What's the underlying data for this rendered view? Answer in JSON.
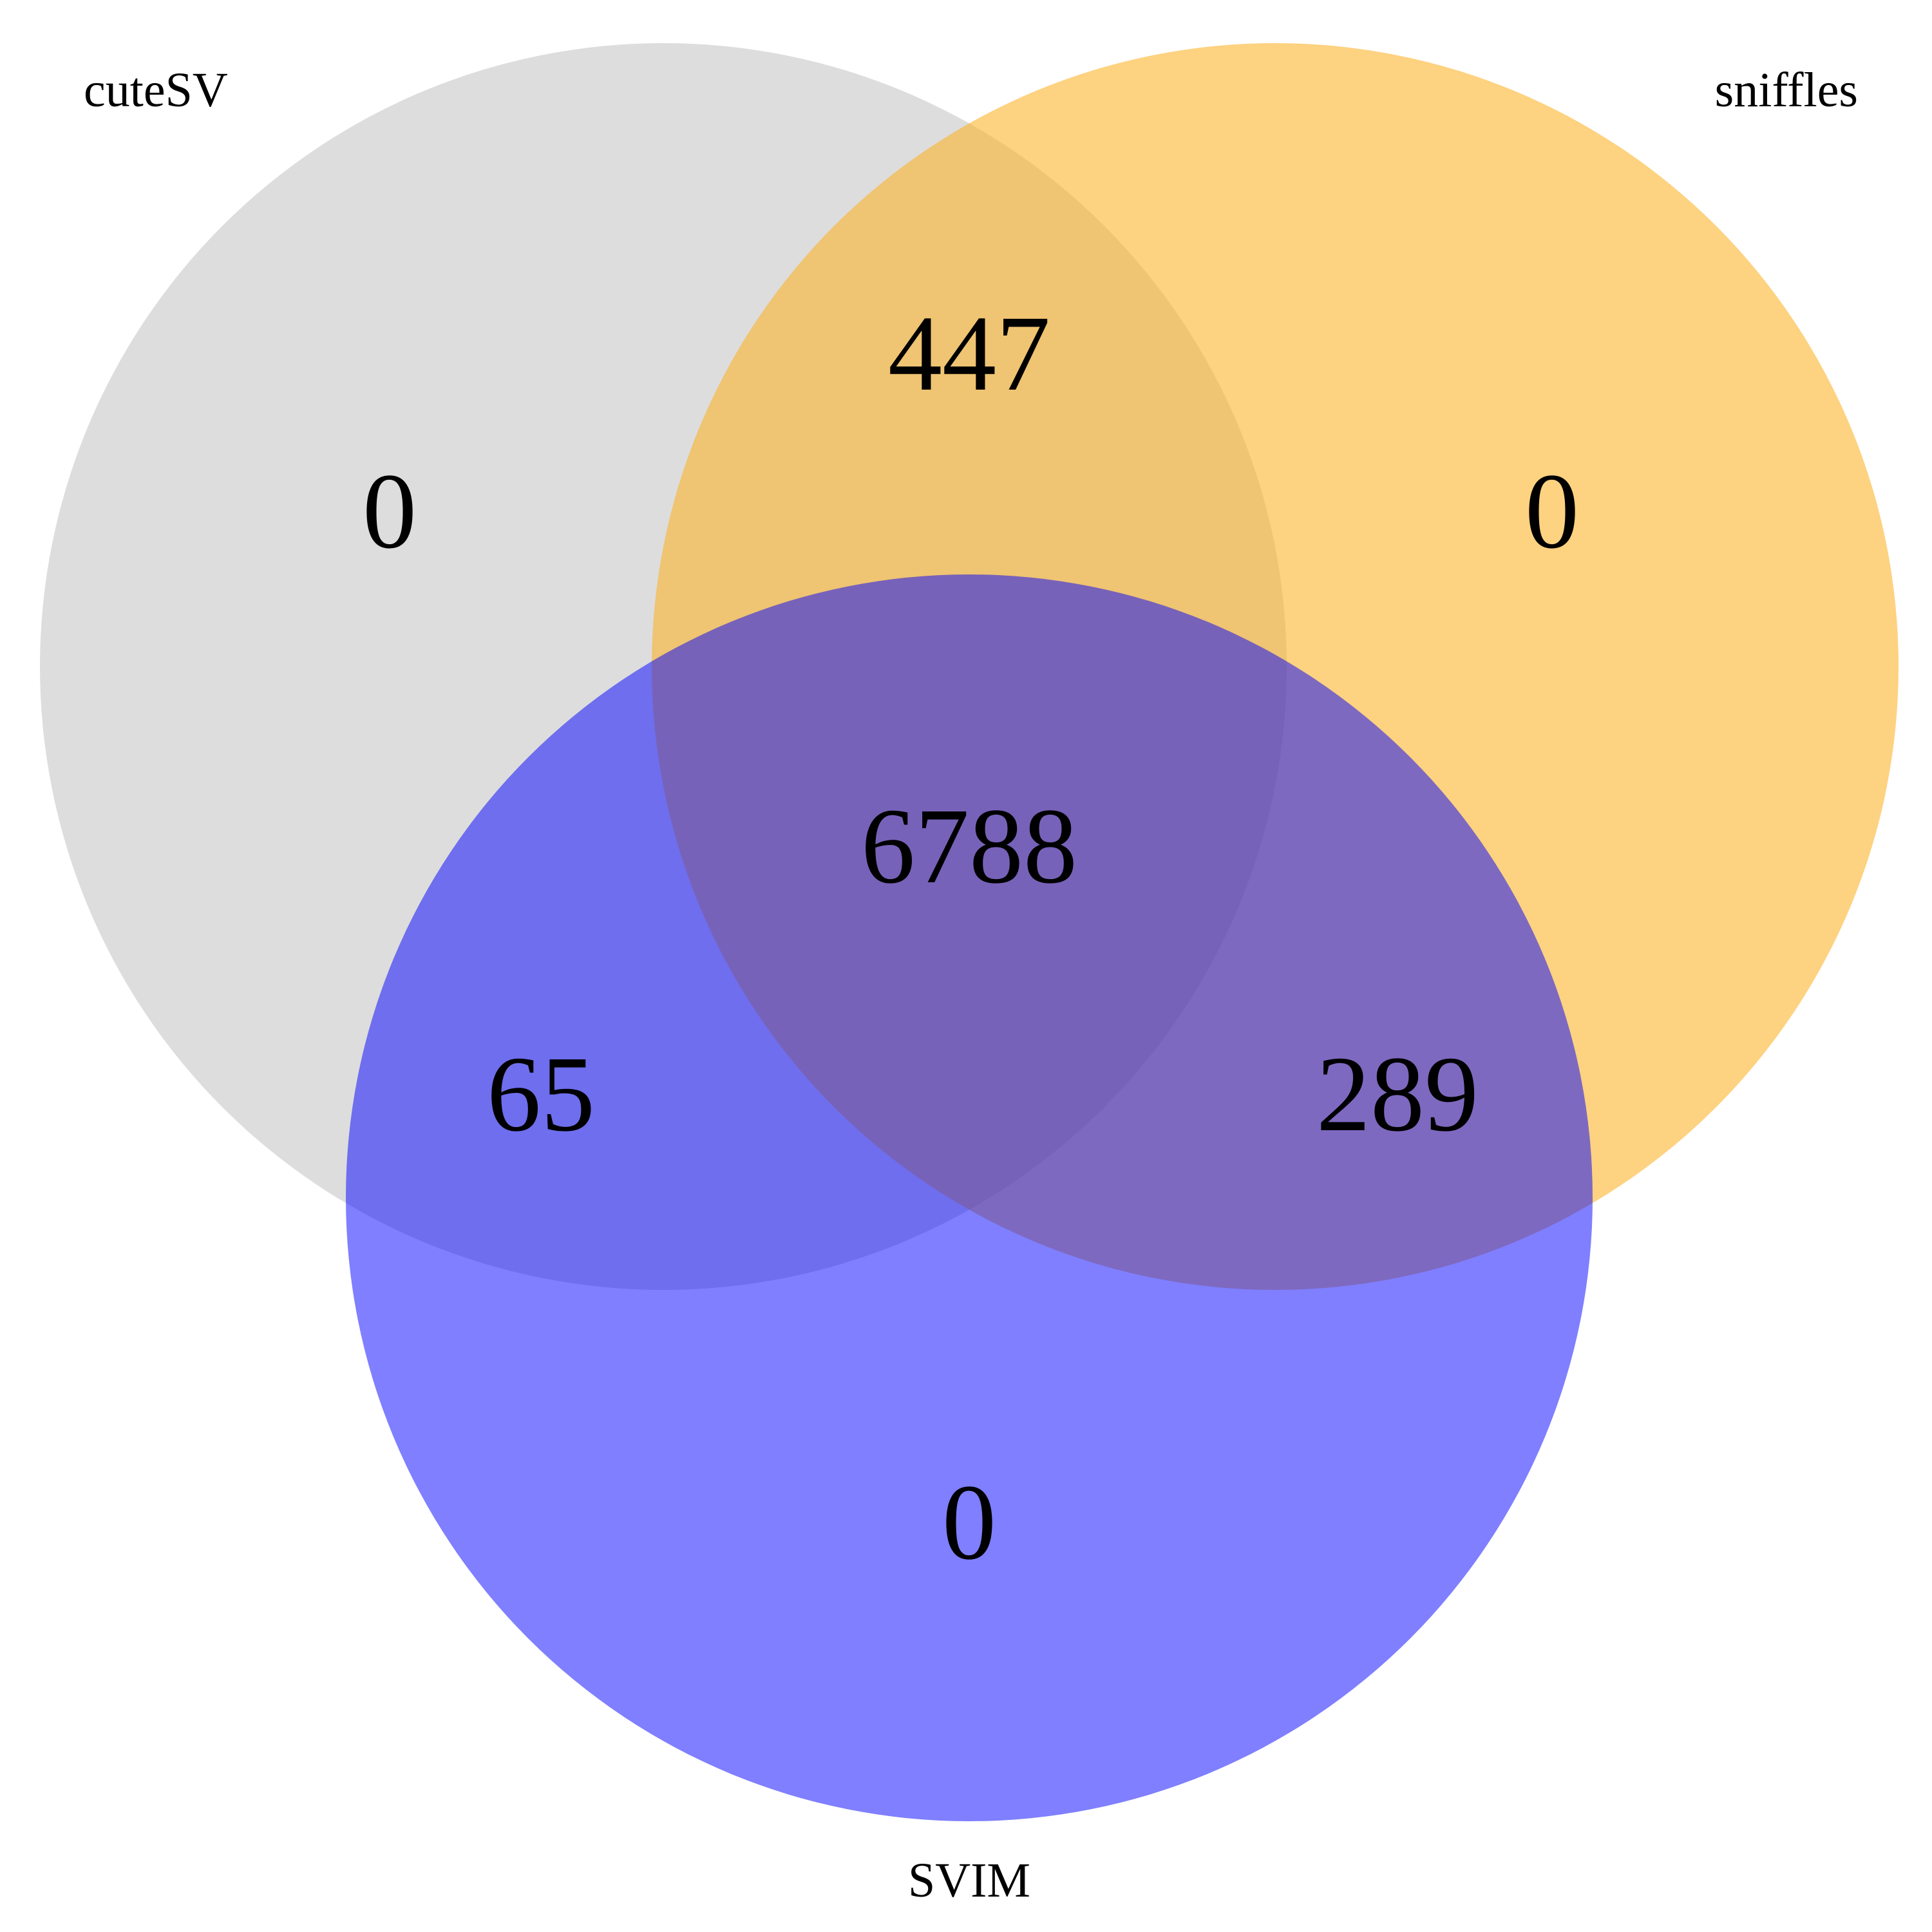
{
  "sets": [
    {
      "id": "A",
      "name": "cuteSV",
      "color": "#bbbbbb",
      "opacity": 0.5
    },
    {
      "id": "B",
      "name": "sniffles",
      "color": "#fbb42c",
      "opacity": 0.6
    },
    {
      "id": "C",
      "name": "SVIM",
      "color": "#0000ff",
      "opacity": 0.5
    }
  ],
  "regions": {
    "cuteSV_only": "0",
    "sniffles_only": "0",
    "SVIM_only": "0",
    "cuteSV_sniffles": "447",
    "cuteSV_SVIM": "65",
    "sniffles_SVIM": "289",
    "all_three": "6788"
  }
}
